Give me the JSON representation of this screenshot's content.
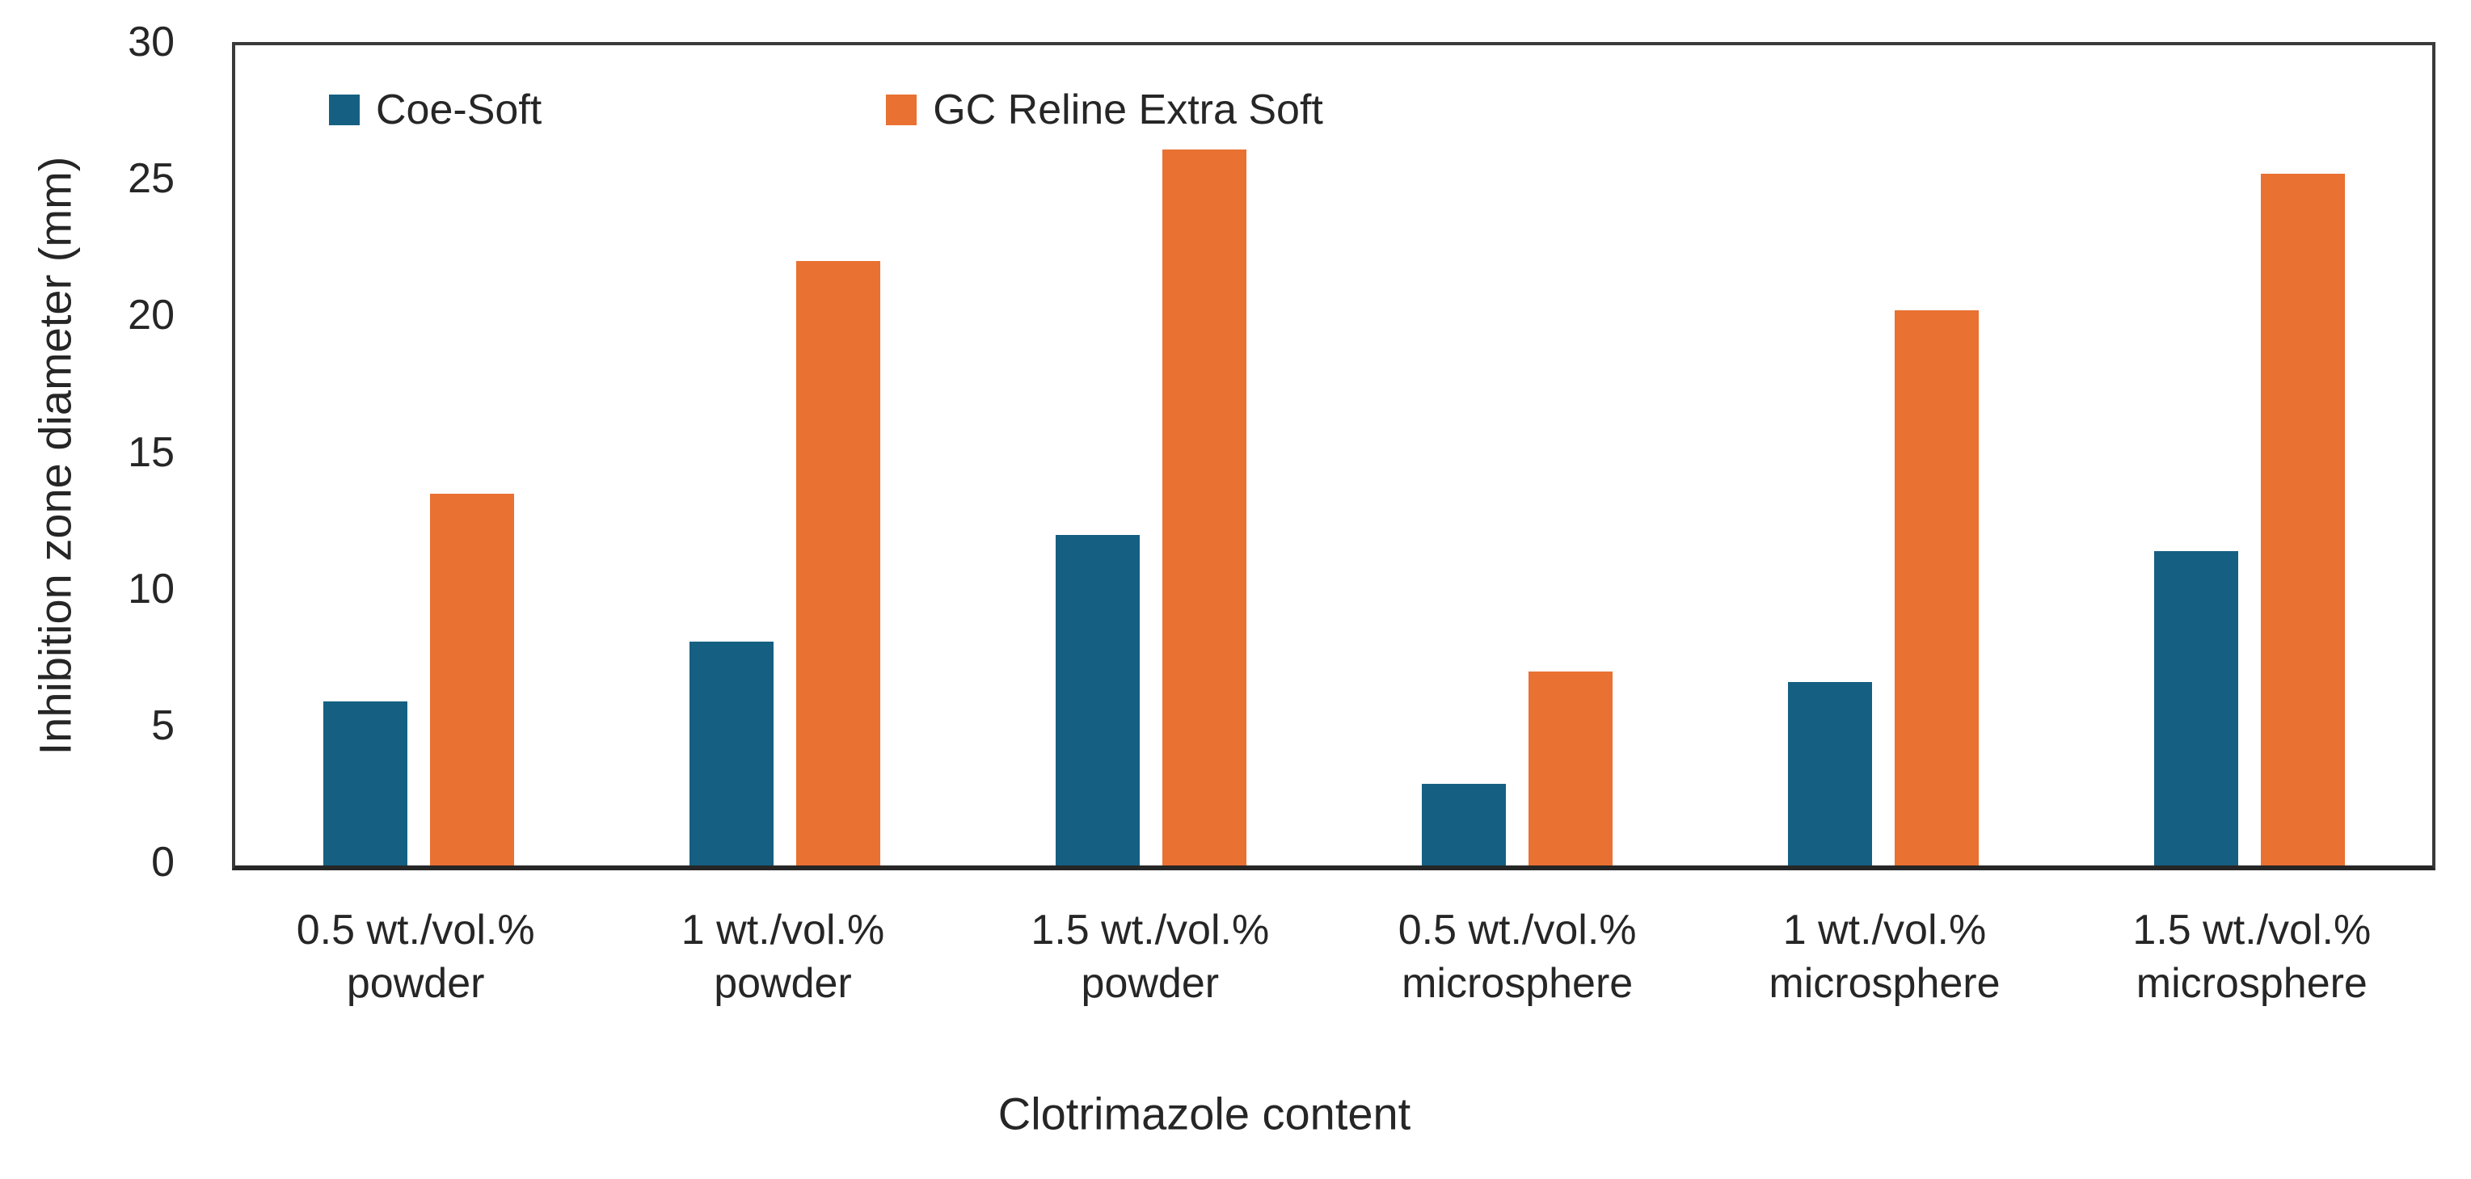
{
  "chart_data": {
    "type": "bar",
    "title": "",
    "xlabel": "Clotrimazole content",
    "ylabel": "Inhibition zone diameter (mm)",
    "ylim": [
      0,
      30
    ],
    "yticks": [
      0,
      5,
      10,
      15,
      20,
      25,
      30
    ],
    "grid": false,
    "legend_position": "inside-top-left",
    "plot_border": true,
    "categories": [
      "0.5 wt./vol.%\npowder",
      "1 wt./vol.%\npowder",
      "1.5 wt./vol.%\npowder",
      "0.5 wt./vol.%\nmicrosphere",
      "1 wt./vol.%\nmicrosphere",
      "1.5 wt./vol.%\nmicrosphere"
    ],
    "series": [
      {
        "name": "Coe-Soft",
        "color": "#156082",
        "values": [
          6.0,
          8.2,
          12.1,
          3.0,
          6.7,
          11.5
        ]
      },
      {
        "name": "GC Reline Extra Soft",
        "color": "#E97132",
        "values": [
          13.6,
          22.1,
          26.2,
          7.1,
          20.3,
          25.3
        ]
      }
    ]
  },
  "colors": {
    "axis_line": "#262626",
    "plot_border": "#3a3a3a",
    "text": "#262626",
    "background": "#ffffff"
  }
}
